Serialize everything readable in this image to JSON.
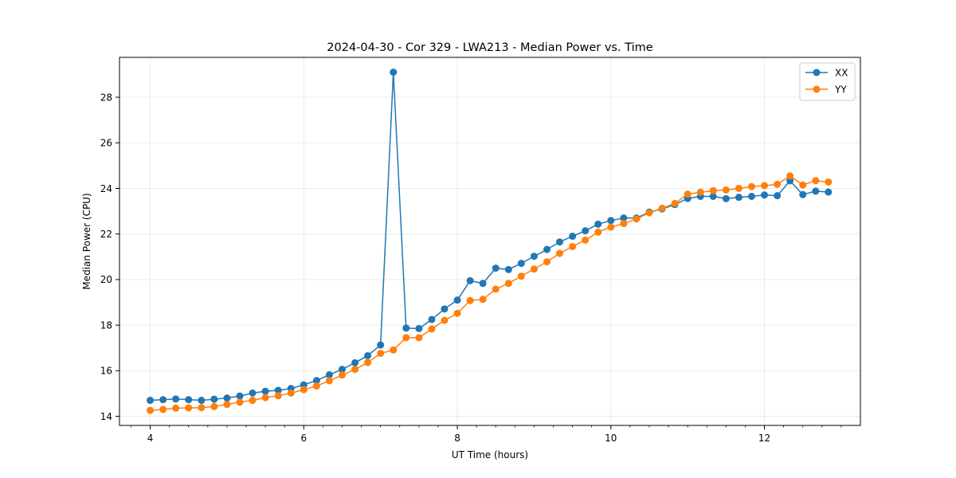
{
  "chart_data": {
    "type": "line",
    "title": "2024-04-30 - Cor 329 - LWA213 - Median Power vs. Time",
    "xlabel": "UT Time (hours)",
    "ylabel": "Median Power (CPU)",
    "xlim": [
      3.6,
      13.25
    ],
    "ylim": [
      13.6,
      29.75
    ],
    "xticks": [
      4,
      6,
      8,
      10,
      12
    ],
    "xtick_labels": [
      "4",
      "6",
      "8",
      "10",
      "12"
    ],
    "yticks": [
      14,
      16,
      18,
      20,
      22,
      24,
      26,
      28
    ],
    "ytick_labels": [
      "14",
      "16",
      "18",
      "20",
      "22",
      "24",
      "26",
      "28"
    ],
    "grid": true,
    "legend_position": "top-right",
    "x": [
      4.0,
      4.167,
      4.333,
      4.5,
      4.667,
      4.833,
      5.0,
      5.167,
      5.333,
      5.5,
      5.667,
      5.833,
      6.0,
      6.167,
      6.333,
      6.5,
      6.667,
      6.833,
      7.0,
      7.167,
      7.333,
      7.5,
      7.667,
      7.833,
      8.0,
      8.167,
      8.333,
      8.5,
      8.667,
      8.833,
      9.0,
      9.167,
      9.333,
      9.5,
      9.667,
      9.833,
      10.0,
      10.167,
      10.333,
      10.5,
      10.667,
      10.833,
      11.0,
      11.167,
      11.333,
      11.5,
      11.667,
      11.833,
      12.0,
      12.167,
      12.333,
      12.5,
      12.667,
      12.833
    ],
    "series": [
      {
        "name": "XX",
        "color": "#1f77b4",
        "values": [
          14.7,
          14.73,
          14.76,
          14.73,
          14.7,
          14.75,
          14.8,
          14.89,
          15.02,
          15.1,
          15.14,
          15.22,
          15.38,
          15.57,
          15.82,
          16.06,
          16.35,
          16.66,
          17.13,
          29.1,
          17.87,
          17.85,
          18.25,
          18.71,
          19.1,
          19.95,
          19.83,
          20.5,
          20.44,
          20.71,
          21.02,
          21.32,
          21.65,
          21.9,
          22.14,
          22.43,
          22.59,
          22.7,
          22.7,
          22.96,
          23.1,
          23.29,
          23.56,
          23.65,
          23.65,
          23.55,
          23.61,
          23.65,
          23.71,
          23.68,
          24.33,
          23.73,
          23.88,
          23.84
        ]
      },
      {
        "name": "YY",
        "color": "#ff7f0e",
        "values": [
          14.26,
          14.3,
          14.36,
          14.37,
          14.38,
          14.43,
          14.52,
          14.62,
          14.7,
          14.82,
          14.9,
          15.02,
          15.17,
          15.33,
          15.56,
          15.81,
          16.06,
          16.36,
          16.76,
          16.91,
          17.45,
          17.45,
          17.83,
          18.21,
          18.52,
          19.08,
          19.13,
          19.58,
          19.83,
          20.15,
          20.46,
          20.78,
          21.15,
          21.45,
          21.73,
          22.08,
          22.3,
          22.46,
          22.66,
          22.93,
          23.13,
          23.34,
          23.75,
          23.83,
          23.9,
          23.93,
          24.0,
          24.08,
          24.12,
          24.18,
          24.55,
          24.15,
          24.34,
          24.28
        ]
      }
    ]
  }
}
